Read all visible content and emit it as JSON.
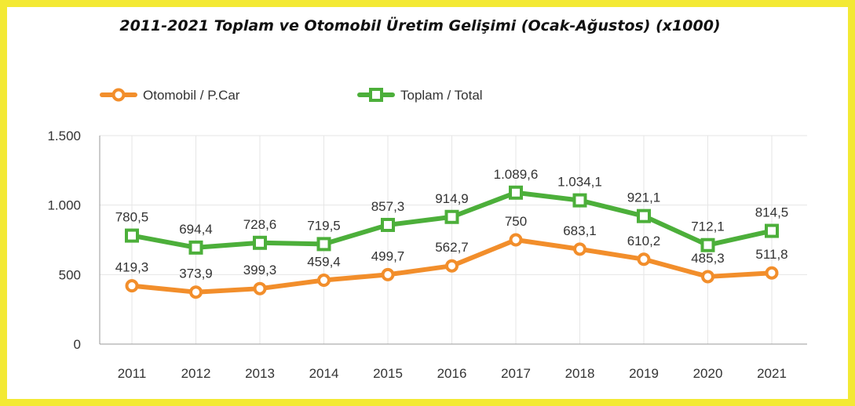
{
  "chart_data": {
    "type": "line",
    "title": "2011-2021 Toplam ve Otomobil Üretim Gelişimi (Ocak-Ağustos) (x1000)",
    "categories": [
      "2011",
      "2012",
      "2013",
      "2014",
      "2015",
      "2016",
      "2017",
      "2018",
      "2019",
      "2020",
      "2021"
    ],
    "series": [
      {
        "name": "Otomobil / P.Car",
        "color": "#f28e2b",
        "marker": "circle",
        "values": [
          419.3,
          373.9,
          399.3,
          459.4,
          499.7,
          562.7,
          750,
          683.1,
          610.2,
          485.3,
          511.8
        ],
        "labels": [
          "419,3",
          "373,9",
          "399,3",
          "459,4",
          "499,7",
          "562,7",
          "750",
          "683,1",
          "610,2",
          "485,3",
          "511,8"
        ]
      },
      {
        "name": "Toplam / Total",
        "color": "#4caf3a",
        "marker": "square",
        "values": [
          780.5,
          694.4,
          728.6,
          719.5,
          857.3,
          914.9,
          1089.6,
          1034.1,
          921.1,
          712.1,
          814.5
        ],
        "labels": [
          "780,5",
          "694,4",
          "728,6",
          "719,5",
          "857,3",
          "914,9",
          "1.089,6",
          "1.034,1",
          "921,1",
          "712,1",
          "814,5"
        ]
      }
    ],
    "ylim": [
      0,
      1500
    ],
    "yticks": [
      0,
      500,
      1000,
      1500
    ],
    "ytick_labels": [
      "0",
      "500",
      "1.000",
      "1.500"
    ],
    "grid": true,
    "legend": "top-left"
  },
  "colors": {
    "border": "#f3e934",
    "grid": "#e6e6e6",
    "axis": "#999999",
    "text": "#333333"
  }
}
